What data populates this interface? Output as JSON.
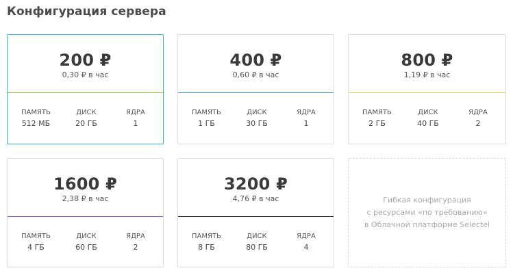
{
  "page": {
    "title": "Конфигурация сервера"
  },
  "plans": [
    {
      "price": "200 ₽",
      "hourly": "0,30 ₽ в час",
      "accent": "#8cc63f",
      "selected": true,
      "specs": [
        {
          "label": "ПАМЯТЬ",
          "value": "512 МБ"
        },
        {
          "label": "ДИСК",
          "value": "20 ГБ"
        },
        {
          "label": "ЯДРА",
          "value": "1"
        }
      ]
    },
    {
      "price": "400 ₽",
      "hourly": "0,60 ₽ в час",
      "accent": "#4a9fd8",
      "selected": false,
      "specs": [
        {
          "label": "ПАМЯТЬ",
          "value": "1 ГБ"
        },
        {
          "label": "ДИСК",
          "value": "30 ГБ"
        },
        {
          "label": "ЯДРА",
          "value": "1"
        }
      ]
    },
    {
      "price": "800 ₽",
      "hourly": "1,19 ₽ в час",
      "accent": "#e0cf6a",
      "selected": false,
      "specs": [
        {
          "label": "ПАМЯТЬ",
          "value": "2 ГБ"
        },
        {
          "label": "ДИСК",
          "value": "40 ГБ"
        },
        {
          "label": "ЯДРА",
          "value": "2"
        }
      ]
    },
    {
      "price": "1600 ₽",
      "hourly": "2,38 ₽ в час",
      "accent": "#9b59d0",
      "selected": false,
      "specs": [
        {
          "label": "ПАМЯТЬ",
          "value": "4 ГБ"
        },
        {
          "label": "ДИСК",
          "value": "60 ГБ"
        },
        {
          "label": "ЯДРА",
          "value": "2"
        }
      ]
    },
    {
      "price": "3200 ₽",
      "hourly": "4,76 ₽ в час",
      "accent": "#333333",
      "selected": false,
      "specs": [
        {
          "label": "ПАМЯТЬ",
          "value": "8 ГБ"
        },
        {
          "label": "ДИСК",
          "value": "80 ГБ"
        },
        {
          "label": "ЯДРА",
          "value": "4"
        }
      ]
    }
  ],
  "flexible": {
    "lines": [
      "Гибкая конфигурация",
      "с ресурсами «по требованию»",
      "в Облачной платформе Selectel"
    ]
  },
  "colors": {
    "selected_border": "#3bb8c9"
  }
}
